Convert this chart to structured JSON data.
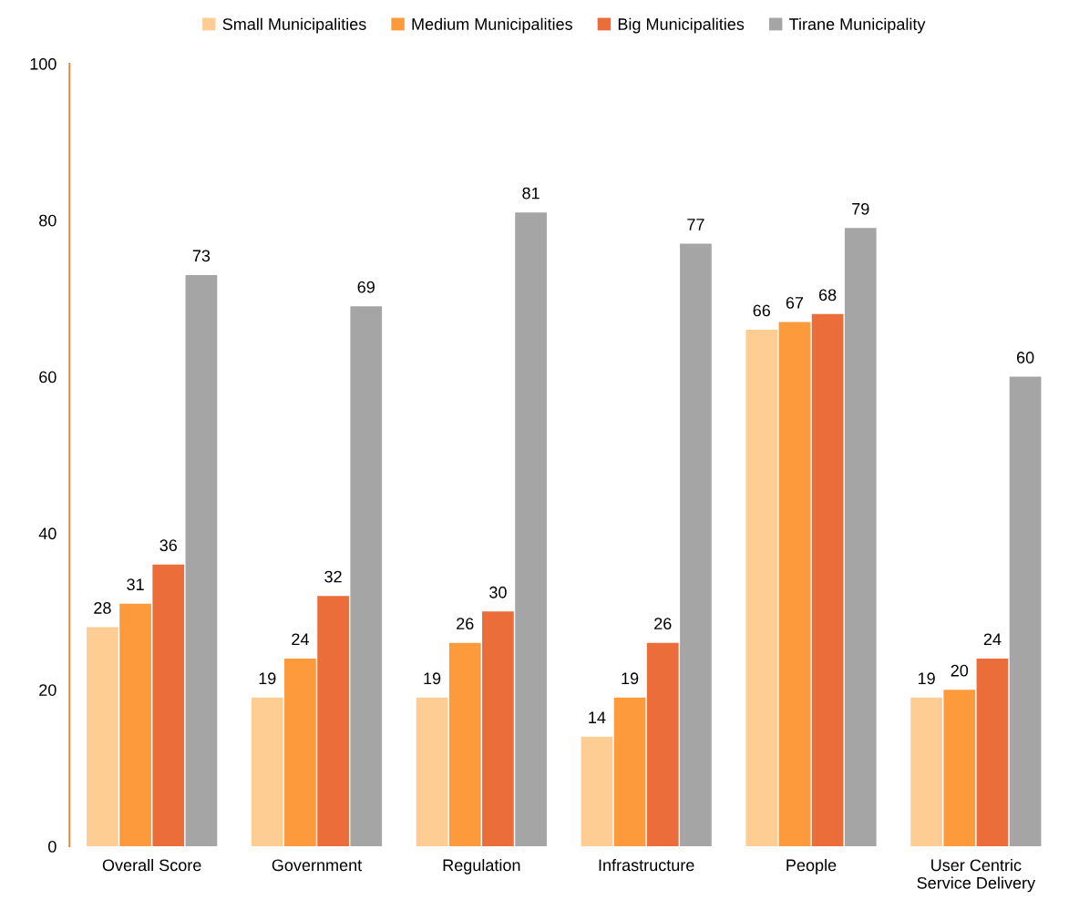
{
  "chart_data": {
    "type": "bar",
    "categories": [
      "Overall Score",
      "Government",
      "Regulation",
      "Infrastructure",
      "People",
      "User Centric\nService Delivery"
    ],
    "series": [
      {
        "name": "Small Municipalities",
        "color": "#fdcd94",
        "values": [
          28,
          19,
          19,
          14,
          66,
          19
        ]
      },
      {
        "name": "Medium Municipalities",
        "color": "#fd9a3c",
        "values": [
          31,
          24,
          26,
          19,
          67,
          20
        ]
      },
      {
        "name": "Big Municipalities",
        "color": "#ea6d3a",
        "values": [
          36,
          32,
          30,
          26,
          68,
          24
        ]
      },
      {
        "name": "Tirane Municipality",
        "color": "#a5a5a5",
        "values": [
          73,
          69,
          81,
          77,
          79,
          60
        ]
      }
    ],
    "ylim": [
      0,
      100
    ],
    "yticks": [
      0,
      20,
      40,
      60,
      80,
      100
    ],
    "data_labels": true,
    "grid": false,
    "legend": "top"
  }
}
